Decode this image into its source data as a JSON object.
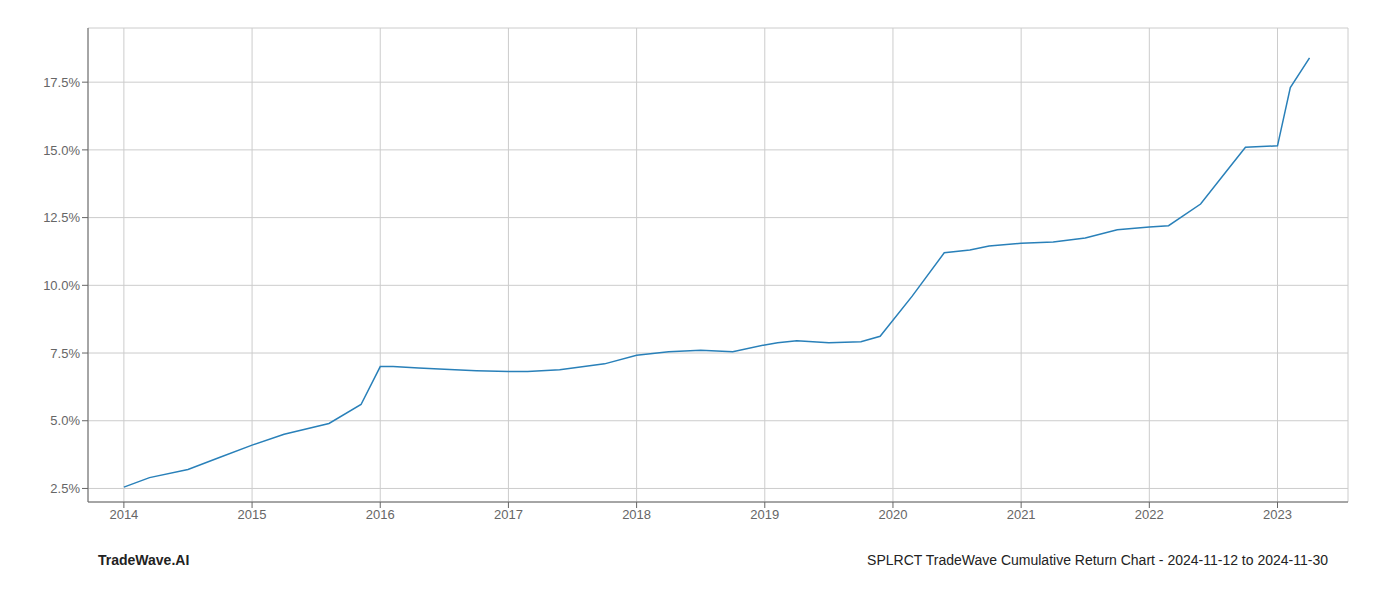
{
  "chart_data": {
    "type": "line",
    "x": [
      2014.0,
      2014.2,
      2014.5,
      2014.75,
      2015.0,
      2015.25,
      2015.6,
      2015.85,
      2016.0,
      2016.1,
      2016.3,
      2016.5,
      2016.75,
      2017.0,
      2017.15,
      2017.4,
      2017.75,
      2018.0,
      2018.25,
      2018.5,
      2018.75,
      2019.0,
      2019.1,
      2019.25,
      2019.5,
      2019.75,
      2019.9,
      2020.15,
      2020.4,
      2020.6,
      2020.75,
      2021.0,
      2021.25,
      2021.5,
      2021.75,
      2022.0,
      2022.15,
      2022.4,
      2022.6,
      2022.75,
      2023.0,
      2023.1,
      2023.25
    ],
    "values": [
      2.55,
      2.9,
      3.2,
      3.65,
      4.1,
      4.5,
      4.9,
      5.6,
      7.0,
      7.0,
      6.95,
      6.9,
      6.85,
      6.82,
      6.82,
      6.88,
      7.1,
      7.42,
      7.55,
      7.6,
      7.55,
      7.8,
      7.88,
      7.95,
      7.88,
      7.92,
      8.12,
      9.6,
      11.2,
      11.3,
      11.45,
      11.55,
      11.6,
      11.75,
      12.05,
      12.15,
      12.2,
      13.0,
      14.2,
      15.1,
      15.15,
      17.3,
      18.4
    ],
    "color": "#2980b9",
    "xlim": [
      2013.72,
      2023.55
    ],
    "ylim": [
      2.0,
      19.5
    ],
    "xticks": [
      2014,
      2015,
      2016,
      2017,
      2018,
      2019,
      2020,
      2021,
      2022,
      2023
    ],
    "yticks": [
      {
        "value": 2.5,
        "label": "2.5%"
      },
      {
        "value": 5.0,
        "label": "5.0%"
      },
      {
        "value": 7.5,
        "label": "7.5%"
      },
      {
        "value": 10.0,
        "label": "10.0%"
      },
      {
        "value": 12.5,
        "label": "12.5%"
      },
      {
        "value": 15.0,
        "label": "15.0%"
      },
      {
        "value": 17.5,
        "label": "17.5%"
      }
    ],
    "grid": true,
    "annotations": [
      "TradeWave.AI",
      "SPLRCT TradeWave Cumulative Return Chart - 2024-11-12 to 2024-11-30"
    ]
  }
}
